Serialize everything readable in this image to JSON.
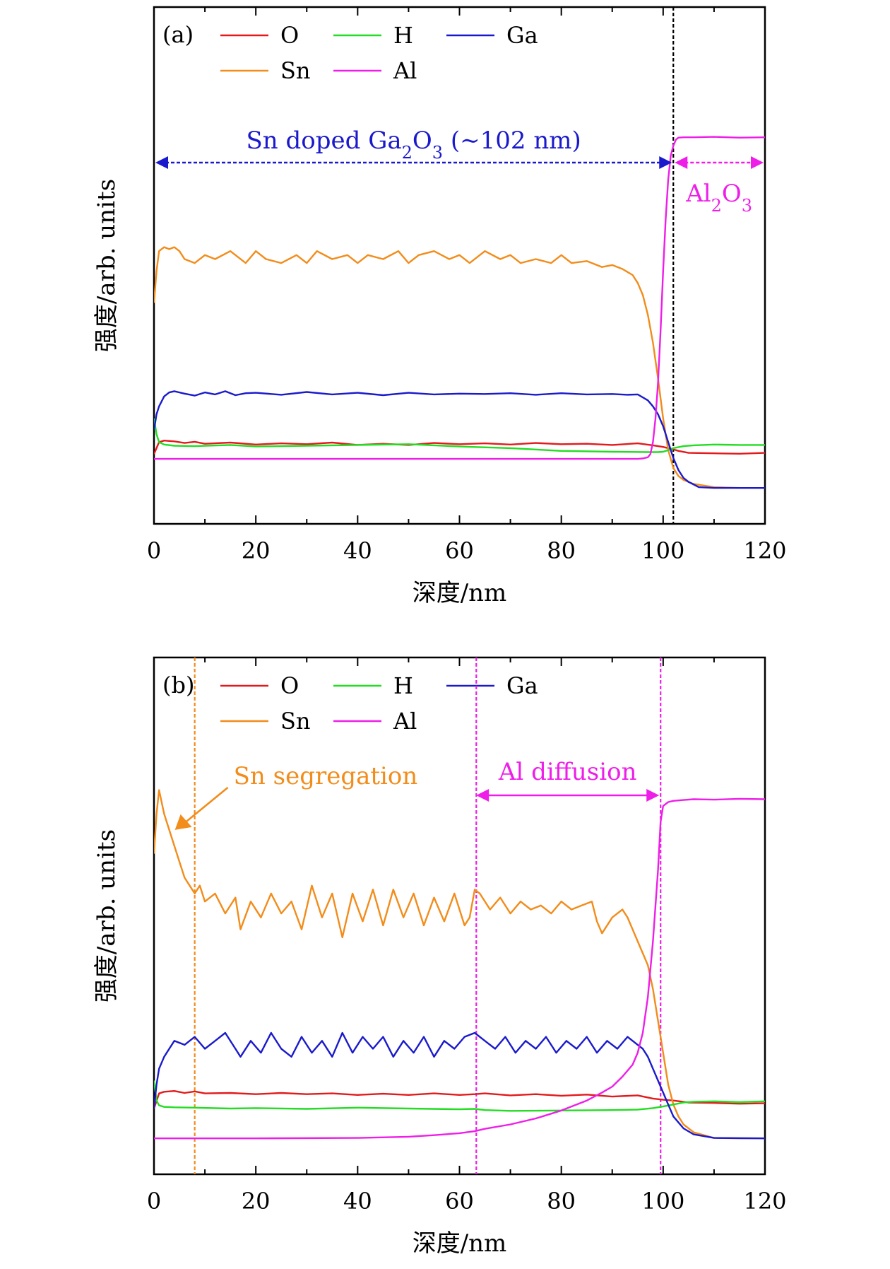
{
  "chart_data": [
    {
      "type": "line",
      "panel_label": "(a)",
      "xlabel": "深度/nm",
      "ylabel": "强度/arb. units",
      "xlim": [
        0,
        120
      ],
      "xticks": [
        0,
        20,
        40,
        60,
        80,
        100,
        120
      ],
      "ylim": [
        0,
        100
      ],
      "legend_placement": "top-left",
      "series": [
        {
          "name": "O",
          "color": "#e31a1c",
          "x": [
            0,
            1,
            2,
            4,
            6,
            8,
            10,
            15,
            20,
            25,
            30,
            35,
            40,
            45,
            50,
            55,
            60,
            65,
            70,
            75,
            80,
            85,
            90,
            95,
            98,
            100,
            101,
            102,
            103,
            105,
            110,
            115,
            120
          ],
          "y": [
            9,
            12,
            12.4,
            12.2,
            11.8,
            12.1,
            11.6,
            11.9,
            11.4,
            11.7,
            11.5,
            11.9,
            11.3,
            11.6,
            11.3,
            11.8,
            11.5,
            11.7,
            11.4,
            11.8,
            11.5,
            11.6,
            11.3,
            11.7,
            11.2,
            10.8,
            10.5,
            10.2,
            9.8,
            9.3,
            9.2,
            9.1,
            9.3
          ]
        },
        {
          "name": "Sn",
          "color": "#f28c1a",
          "x": [
            0,
            0.5,
            1,
            2,
            3,
            4,
            5,
            6,
            8,
            10,
            12,
            15,
            18,
            20,
            22,
            25,
            28,
            30,
            32,
            35,
            38,
            40,
            42,
            45,
            48,
            50,
            52,
            55,
            58,
            60,
            62,
            65,
            68,
            70,
            72,
            75,
            78,
            80,
            82,
            85,
            88,
            90,
            92,
            94,
            95,
            96,
            97,
            98,
            99,
            100,
            101,
            102,
            103,
            104,
            106,
            110,
            115,
            120
          ],
          "y": [
            47,
            55,
            60,
            61,
            60.5,
            61,
            60,
            58,
            57,
            59,
            58,
            60,
            57,
            60,
            58,
            57,
            59,
            57,
            60,
            58,
            59,
            57,
            59,
            58,
            60,
            57,
            59,
            60,
            58,
            59,
            57,
            60,
            58,
            59,
            57,
            58,
            57,
            59,
            57,
            57.5,
            56,
            56.5,
            55.5,
            54,
            52,
            49,
            44,
            37,
            28,
            18,
            10,
            5.5,
            3.5,
            2.5,
            1.5,
            0.7,
            0.5,
            0.5
          ]
        },
        {
          "name": "H",
          "color": "#22dd22",
          "x": [
            0,
            0.5,
            1,
            2,
            4,
            8,
            15,
            20,
            30,
            40,
            50,
            55,
            60,
            70,
            80,
            90,
            97,
            99,
            100,
            101,
            102,
            104,
            106,
            110,
            115,
            120
          ],
          "y": [
            18,
            14,
            12,
            11.4,
            11.1,
            11.0,
            11.3,
            10.9,
            11.1,
            11.3,
            11.5,
            11.2,
            10.9,
            10.5,
            9.8,
            9.6,
            9.5,
            9.5,
            9.6,
            10.0,
            10.5,
            11.0,
            11.2,
            11.4,
            11.3,
            11.3
          ]
        },
        {
          "name": "Ga",
          "color": "#1a1acc",
          "x": [
            0,
            0.5,
            1,
            2,
            3,
            4,
            6,
            8,
            10,
            12,
            14,
            16,
            18,
            20,
            25,
            30,
            35,
            40,
            45,
            50,
            55,
            60,
            65,
            70,
            75,
            80,
            85,
            90,
            93,
            95,
            97,
            98,
            99,
            100,
            101,
            102,
            103,
            104,
            105,
            107,
            110,
            120
          ],
          "y": [
            15,
            19,
            21,
            23.5,
            24.5,
            24.8,
            24.2,
            23.7,
            24.5,
            24.0,
            24.8,
            23.8,
            24.3,
            24.4,
            23.9,
            24.6,
            24.0,
            24.4,
            23.8,
            24.4,
            24.0,
            24.2,
            24.1,
            24.3,
            23.9,
            24.3,
            24.0,
            24.1,
            23.9,
            24.0,
            22.5,
            21,
            19,
            16,
            12,
            8,
            5,
            3,
            2,
            0.7,
            0.5,
            0.5
          ]
        },
        {
          "name": "Al",
          "color": "#ee1ee8",
          "x": [
            0,
            20,
            40,
            60,
            80,
            95,
            96,
            97,
            97.5,
            98,
            98.5,
            99,
            99.5,
            100,
            100.5,
            101,
            101.5,
            102,
            102.5,
            103,
            104,
            106,
            110,
            115,
            120
          ],
          "y": [
            7.8,
            7.8,
            7.8,
            7.8,
            7.8,
            7.8,
            7.9,
            8.2,
            9.0,
            12,
            18,
            27,
            40,
            55,
            68,
            78,
            84,
            86.5,
            88,
            88.5,
            88.6,
            88.6,
            88.7,
            88.5,
            88.6
          ]
        }
      ],
      "region_annotations": [
        {
          "label_prefix": "Sn doped Ga",
          "sub1": "2",
          "label_mid": "O",
          "sub2": "3",
          "label_suffix": " (∼102 nm)",
          "from": 0,
          "to": 102,
          "color": "#1a1acc"
        },
        {
          "label_prefix": "Al",
          "sub1": "2",
          "label_mid": "O",
          "sub2": "3",
          "label_suffix": "",
          "from": 102,
          "to": 120,
          "color": "#ee1ee8"
        }
      ],
      "vlines": [
        {
          "x": 102,
          "color": "#000000"
        }
      ]
    },
    {
      "type": "line",
      "panel_label": "(b)",
      "xlabel": "深度/nm",
      "ylabel": "强度/arb. units",
      "xlim": [
        0,
        120
      ],
      "xticks": [
        0,
        20,
        40,
        60,
        80,
        100,
        120
      ],
      "ylim": [
        0,
        100
      ],
      "legend_placement": "top-left",
      "series": [
        {
          "name": "O",
          "color": "#e31a1c",
          "x": [
            0,
            1,
            2,
            4,
            6,
            8,
            10,
            15,
            20,
            25,
            30,
            35,
            40,
            45,
            50,
            55,
            60,
            63,
            65,
            70,
            75,
            80,
            85,
            90,
            95,
            98,
            100,
            102,
            105,
            110,
            115,
            120
          ],
          "y": [
            8,
            11.8,
            12.2,
            12.4,
            11.9,
            12.3,
            11.8,
            11.9,
            11.6,
            11.9,
            11.6,
            11.8,
            11.4,
            11.7,
            11.4,
            11.8,
            11.4,
            11.6,
            11.8,
            11.3,
            11.6,
            11.2,
            11.5,
            11.0,
            11.3,
            10.5,
            10.2,
            10.0,
            9.5,
            9.4,
            9.2,
            9.3
          ]
        },
        {
          "name": "Sn",
          "color": "#f28c1a",
          "x": [
            0,
            0.5,
            1,
            2,
            3,
            4,
            5,
            6,
            7,
            8,
            9,
            10,
            12,
            14,
            16,
            17,
            19,
            21,
            23,
            25,
            27,
            29,
            31,
            33,
            35,
            37,
            39,
            41,
            43,
            45,
            47,
            49,
            51,
            53,
            55,
            57,
            59,
            61,
            62,
            63,
            64,
            66,
            68,
            70,
            72,
            74,
            76,
            78,
            80,
            82,
            84,
            86,
            87,
            88,
            90,
            92,
            93,
            95,
            96,
            97,
            98,
            99,
            100,
            101,
            102,
            103,
            104,
            106,
            110,
            115,
            120
          ],
          "y": [
            72,
            82,
            88,
            82,
            78,
            74,
            70,
            66,
            64,
            62,
            64,
            60,
            62,
            57,
            61,
            53,
            60,
            56,
            62,
            57,
            60,
            53,
            64,
            56,
            62,
            51,
            62,
            55,
            63,
            54,
            63,
            56,
            62,
            54,
            61,
            55,
            62,
            54,
            56,
            63,
            62,
            58,
            61,
            57,
            60,
            58,
            59,
            57,
            60,
            58,
            59,
            60,
            55,
            52,
            56,
            58,
            56,
            50,
            47,
            44,
            38,
            30,
            22,
            14,
            9,
            6,
            4,
            2,
            0.6,
            0.5,
            0.5
          ]
        },
        {
          "name": "H",
          "color": "#22dd22",
          "x": [
            0,
            0.5,
            1,
            2,
            4,
            8,
            15,
            20,
            30,
            40,
            50,
            60,
            63,
            65,
            70,
            80,
            90,
            95,
            98,
            100,
            102,
            104,
            106,
            110,
            115,
            120
          ],
          "y": [
            15,
            10,
            8.8,
            8.4,
            8.3,
            8.2,
            8.0,
            8.1,
            7.9,
            8.2,
            8.0,
            7.8,
            7.9,
            7.6,
            7.4,
            7.5,
            7.6,
            7.7,
            8.1,
            8.5,
            9.0,
            9.5,
            9.7,
            9.8,
            9.6,
            9.8
          ]
        },
        {
          "name": "Ga",
          "color": "#1a1acc",
          "x": [
            0,
            0.5,
            1,
            2,
            3,
            4,
            6,
            8,
            10,
            12,
            14,
            16,
            17,
            19,
            21,
            23,
            25,
            27,
            29,
            31,
            33,
            35,
            37,
            39,
            41,
            43,
            45,
            47,
            49,
            51,
            53,
            55,
            57,
            59,
            61,
            63,
            65,
            67,
            69,
            71,
            73,
            75,
            77,
            79,
            81,
            83,
            85,
            87,
            89,
            91,
            93,
            95,
            96,
            97,
            98,
            99,
            100,
            101,
            102,
            104,
            106,
            110,
            120
          ],
          "y": [
            8,
            14,
            18,
            21,
            23,
            25,
            24,
            26,
            23,
            25,
            27,
            23,
            21,
            25,
            22,
            27,
            23,
            21,
            26,
            22,
            25,
            21,
            27,
            22,
            26,
            23,
            26,
            21,
            25,
            22,
            26,
            21,
            25,
            23,
            26,
            27,
            25,
            23,
            26,
            22,
            25,
            23,
            26,
            22,
            25,
            23,
            26,
            22,
            25,
            23,
            26,
            24,
            23,
            21,
            18,
            15,
            12,
            9,
            6,
            3,
            1.5,
            0.6,
            0.5
          ]
        },
        {
          "name": "Al",
          "color": "#ee1ee8",
          "x": [
            0,
            20,
            40,
            50,
            55,
            60,
            63,
            65,
            70,
            75,
            80,
            85,
            88,
            90,
            92,
            94,
            95,
            96,
            97,
            98,
            99,
            99.5,
            100,
            101,
            102,
            104,
            106,
            110,
            115,
            120
          ],
          "y": [
            0.5,
            0.5,
            0.6,
            0.9,
            1.3,
            1.8,
            2.3,
            2.9,
            4.0,
            5.5,
            7.5,
            10,
            12,
            13.5,
            16,
            19,
            22,
            27,
            36,
            50,
            68,
            80,
            84,
            85,
            85.3,
            85.5,
            85.7,
            85.6,
            85.8,
            85.7
          ]
        }
      ],
      "region_annotations": [
        {
          "label_prefix": "Al diffusion",
          "sub1": "",
          "label_mid": "",
          "sub2": "",
          "label_suffix": "",
          "from": 63,
          "to": 99.5,
          "color": "#ee1ee8"
        }
      ],
      "point_annotations": [
        {
          "label": "Sn segregation",
          "x": 3,
          "y": 78,
          "color": "#f28c1a"
        }
      ],
      "vlines": [
        {
          "x": 8,
          "color": "#f28c1a"
        },
        {
          "x": 63.3,
          "color": "#ee1ee8"
        },
        {
          "x": 99.5,
          "color": "#ee1ee8"
        }
      ]
    }
  ]
}
